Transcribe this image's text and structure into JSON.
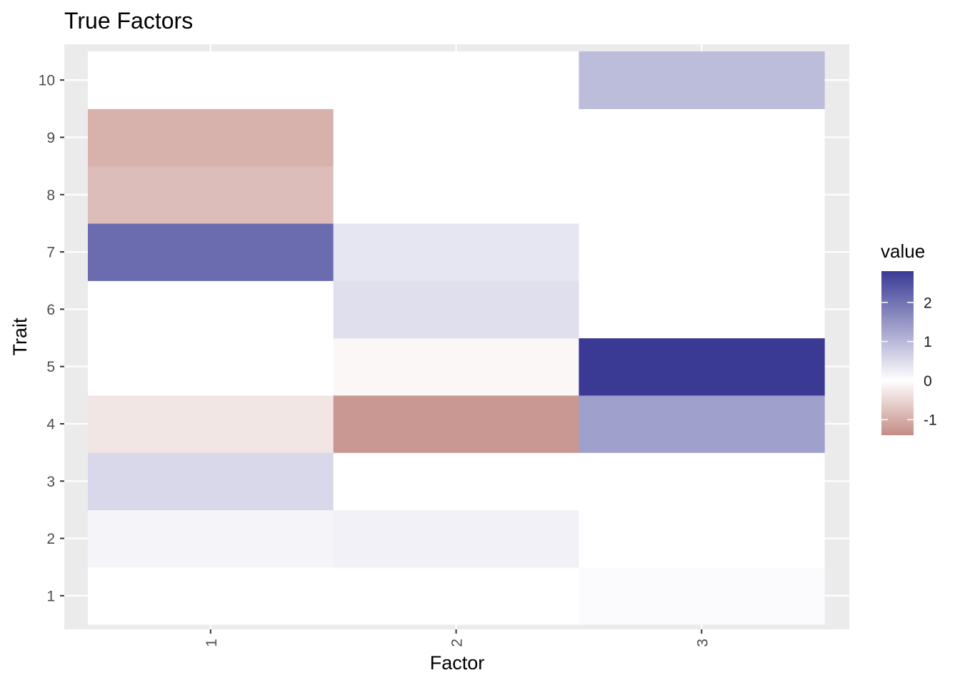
{
  "chart_data": {
    "type": "heatmap",
    "title": "True Factors",
    "xlabel": "Factor",
    "ylabel": "Trait",
    "x_categories": [
      "1",
      "2",
      "3"
    ],
    "y_categories": [
      "1",
      "2",
      "3",
      "4",
      "5",
      "6",
      "7",
      "8",
      "9",
      "10"
    ],
    "grid": true,
    "legend": {
      "title": "value",
      "position": "right",
      "ticks": [
        2,
        1,
        0,
        -1
      ],
      "range": [
        -1.4,
        2.8
      ],
      "low_color": "#c48c85",
      "mid_color": "#ffffff",
      "high_color": "#3a3a95"
    },
    "cells": [
      {
        "factor": "1",
        "trait": "1",
        "value": 0.0
      },
      {
        "factor": "1",
        "trait": "2",
        "value": 0.15
      },
      {
        "factor": "1",
        "trait": "3",
        "value": 0.55
      },
      {
        "factor": "1",
        "trait": "4",
        "value": -0.3
      },
      {
        "factor": "1",
        "trait": "5",
        "value": 0.0
      },
      {
        "factor": "1",
        "trait": "6",
        "value": 0.0
      },
      {
        "factor": "1",
        "trait": "7",
        "value": 2.1
      },
      {
        "factor": "1",
        "trait": "8",
        "value": -0.8
      },
      {
        "factor": "1",
        "trait": "9",
        "value": -0.95
      },
      {
        "factor": "1",
        "trait": "10",
        "value": 0.0
      },
      {
        "factor": "2",
        "trait": "1",
        "value": 0.0
      },
      {
        "factor": "2",
        "trait": "2",
        "value": 0.2
      },
      {
        "factor": "2",
        "trait": "3",
        "value": 0.0
      },
      {
        "factor": "2",
        "trait": "4",
        "value": -1.25
      },
      {
        "factor": "2",
        "trait": "5",
        "value": -0.1
      },
      {
        "factor": "2",
        "trait": "6",
        "value": 0.45
      },
      {
        "factor": "2",
        "trait": "7",
        "value": 0.35
      },
      {
        "factor": "2",
        "trait": "8",
        "value": 0.0
      },
      {
        "factor": "2",
        "trait": "9",
        "value": 0.0
      },
      {
        "factor": "2",
        "trait": "10",
        "value": 0.0
      },
      {
        "factor": "3",
        "trait": "1",
        "value": 0.05
      },
      {
        "factor": "3",
        "trait": "2",
        "value": 0.0
      },
      {
        "factor": "3",
        "trait": "3",
        "value": 0.0
      },
      {
        "factor": "3",
        "trait": "4",
        "value": 1.35
      },
      {
        "factor": "3",
        "trait": "5",
        "value": 2.8
      },
      {
        "factor": "3",
        "trait": "6",
        "value": 0.0
      },
      {
        "factor": "3",
        "trait": "7",
        "value": 0.0
      },
      {
        "factor": "3",
        "trait": "8",
        "value": 0.0
      },
      {
        "factor": "3",
        "trait": "9",
        "value": 0.0
      },
      {
        "factor": "3",
        "trait": "10",
        "value": 0.95
      }
    ]
  }
}
